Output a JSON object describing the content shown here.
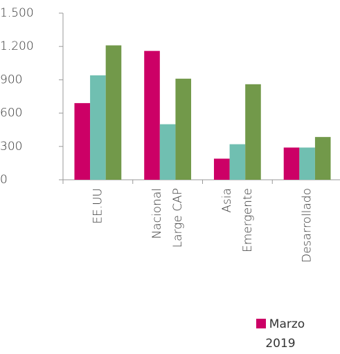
{
  "chart_data": {
    "type": "bar",
    "categories": [
      [
        "EE.UU"
      ],
      [
        "Nacional",
        "Large CAP"
      ],
      [
        "Asia",
        "Emergente"
      ],
      [
        "Desarrollado"
      ]
    ],
    "series": [
      {
        "name": "Marzo 2019",
        "color": "#cc0066",
        "values": [
          690,
          1160,
          190,
          290
        ]
      },
      {
        "color": "#70bfb1",
        "values": [
          940,
          500,
          320,
          290
        ]
      },
      {
        "color": "#72994a",
        "values": [
          1210,
          910,
          860,
          385
        ]
      }
    ],
    "ylim": [
      0,
      1500
    ],
    "yticks": [
      0,
      300,
      600,
      900,
      {
        "value": 1200,
        "label": "1.200"
      },
      {
        "value": 1500,
        "label": "1.500"
      }
    ],
    "grid": false
  }
}
